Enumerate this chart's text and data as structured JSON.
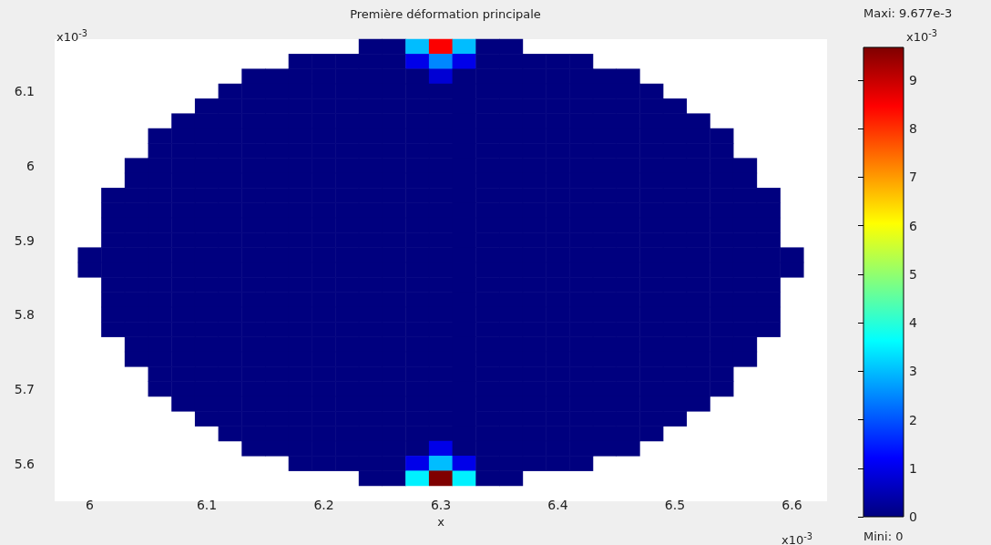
{
  "chart_data": {
    "type": "heatmap",
    "title": "Première déformation principale",
    "xlabel": "x",
    "clabel": "x10$^{-3}$",
    "annotations": [
      "Maxi: 9.677e-3",
      "Mini: 0",
      "x10$^{-3}$",
      "x10$^{-3}$"
    ],
    "categories": [
      null,
      "6",
      null,
      null,
      null,
      null,
      "6.1",
      null,
      null,
      null,
      null,
      "6.2",
      null,
      null,
      null,
      null,
      "6.3",
      null,
      null,
      null,
      null,
      "6.4",
      null,
      null,
      null,
      null,
      "6.5",
      null,
      null,
      null,
      null,
      "6.6",
      null
    ],
    "y_categories": [
      null,
      null,
      null,
      "6.1",
      null,
      null,
      null,
      null,
      "6",
      null,
      null,
      null,
      null,
      "5.9",
      null,
      null,
      null,
      null,
      "5.8",
      null,
      null,
      null,
      null,
      "5.7",
      null,
      null,
      null,
      null,
      "5.6",
      null
    ],
    "clim": [
      0,
      9.677
    ],
    "cticks": [
      0,
      1,
      2,
      3,
      4,
      5,
      6,
      7,
      8,
      9
    ],
    "cells": [
      [
        null,
        null,
        null,
        null,
        null,
        null,
        null,
        null,
        null,
        null,
        null,
        null,
        null,
        0,
        0,
        3,
        8.5,
        3,
        0,
        0,
        null,
        null,
        null,
        null,
        null,
        null,
        null,
        null,
        null,
        null,
        null,
        null,
        null
      ],
      [
        null,
        null,
        null,
        null,
        null,
        null,
        null,
        null,
        null,
        null,
        0,
        0,
        0,
        0,
        0,
        1,
        2.5,
        1,
        0,
        0,
        0,
        0,
        0,
        null,
        null,
        null,
        null,
        null,
        null,
        null,
        null,
        null,
        null
      ],
      [
        null,
        null,
        null,
        null,
        null,
        null,
        null,
        null,
        0,
        0,
        0,
        0,
        0,
        0,
        0,
        0,
        0.8,
        0,
        0,
        0,
        0,
        0,
        0,
        0,
        0,
        null,
        null,
        null,
        null,
        null,
        null,
        null,
        null
      ],
      [
        null,
        null,
        null,
        null,
        null,
        null,
        null,
        0,
        0,
        0,
        0,
        0,
        0,
        0,
        0,
        0,
        0,
        0,
        0,
        0,
        0,
        0,
        0,
        0,
        0,
        0,
        null,
        null,
        null,
        null,
        null,
        null,
        null
      ],
      [
        null,
        null,
        null,
        null,
        null,
        null,
        0,
        0,
        0,
        0,
        0,
        0,
        0,
        0,
        0,
        0,
        0,
        0,
        0,
        0,
        0,
        0,
        0,
        0,
        0,
        0,
        0,
        null,
        null,
        null,
        null,
        null,
        null
      ],
      [
        null,
        null,
        null,
        null,
        null,
        0,
        0,
        0,
        0,
        0,
        0,
        0,
        0,
        0,
        0,
        0,
        0,
        0,
        0,
        0,
        0,
        0,
        0,
        0,
        0,
        0,
        0,
        0,
        null,
        null,
        null,
        null,
        null
      ],
      [
        null,
        null,
        null,
        null,
        0,
        0,
        0,
        0,
        0,
        0,
        0,
        0,
        0,
        0,
        0,
        0,
        0,
        0,
        0,
        0,
        0,
        0,
        0,
        0,
        0,
        0,
        0,
        0,
        0,
        null,
        null,
        null,
        null
      ],
      [
        null,
        null,
        null,
        null,
        0,
        0,
        0,
        0,
        0,
        0,
        0,
        0,
        0,
        0,
        0,
        0,
        0,
        0,
        0,
        0,
        0,
        0,
        0,
        0,
        0,
        0,
        0,
        0,
        0,
        null,
        null,
        null,
        null
      ],
      [
        null,
        null,
        null,
        0,
        0,
        0,
        0,
        0,
        0,
        0,
        0,
        0,
        0,
        0,
        0,
        0,
        0,
        0,
        0,
        0,
        0,
        0,
        0,
        0,
        0,
        0,
        0,
        0,
        0,
        0,
        null,
        null,
        null
      ],
      [
        null,
        null,
        null,
        0,
        0,
        0,
        0,
        0,
        0,
        0,
        0,
        0,
        0,
        0,
        0,
        0,
        0,
        0,
        0,
        0,
        0,
        0,
        0,
        0,
        0,
        0,
        0,
        0,
        0,
        0,
        null,
        null,
        null
      ],
      [
        null,
        null,
        0,
        0,
        0,
        0,
        0,
        0,
        0,
        0,
        0,
        0,
        0,
        0,
        0,
        0,
        0,
        0,
        0,
        0,
        0,
        0,
        0,
        0,
        0,
        0,
        0,
        0,
        0,
        0,
        0,
        null,
        null
      ],
      [
        null,
        null,
        0,
        0,
        0,
        0,
        0,
        0,
        0,
        0,
        0,
        0,
        0,
        0,
        0,
        0,
        0,
        0,
        0,
        0,
        0,
        0,
        0,
        0,
        0,
        0,
        0,
        0,
        0,
        0,
        0,
        null,
        null
      ],
      [
        null,
        null,
        0,
        0,
        0,
        0,
        0,
        0,
        0,
        0,
        0,
        0,
        0,
        0,
        0,
        0,
        0,
        0,
        0,
        0,
        0,
        0,
        0,
        0,
        0,
        0,
        0,
        0,
        0,
        0,
        0,
        null,
        null
      ],
      [
        null,
        null,
        0,
        0,
        0,
        0,
        0,
        0,
        0,
        0,
        0,
        0,
        0,
        0,
        0,
        0,
        0,
        0,
        0,
        0,
        0,
        0,
        0,
        0,
        0,
        0,
        0,
        0,
        0,
        0,
        0,
        null,
        null
      ],
      [
        null,
        0,
        0,
        0,
        0,
        0,
        0,
        0,
        0,
        0,
        0,
        0,
        0,
        0,
        0,
        0,
        0,
        0,
        0,
        0,
        0,
        0,
        0,
        0,
        0,
        0,
        0,
        0,
        0,
        0,
        0,
        0,
        null
      ],
      [
        null,
        0,
        0,
        0,
        0,
        0,
        0,
        0,
        0,
        0,
        0,
        0,
        0,
        0,
        0,
        0,
        0,
        0,
        0,
        0,
        0,
        0,
        0,
        0,
        0,
        0,
        0,
        0,
        0,
        0,
        0,
        0,
        null
      ],
      [
        null,
        null,
        0,
        0,
        0,
        0,
        0,
        0,
        0,
        0,
        0,
        0,
        0,
        0,
        0,
        0,
        0,
        0,
        0,
        0,
        0,
        0,
        0,
        0,
        0,
        0,
        0,
        0,
        0,
        0,
        0,
        null,
        null
      ],
      [
        null,
        null,
        0,
        0,
        0,
        0,
        0,
        0,
        0,
        0,
        0,
        0,
        0,
        0,
        0,
        0,
        0,
        0,
        0,
        0,
        0,
        0,
        0,
        0,
        0,
        0,
        0,
        0,
        0,
        0,
        0,
        null,
        null
      ],
      [
        null,
        null,
        0,
        0,
        0,
        0,
        0,
        0,
        0,
        0,
        0,
        0,
        0,
        0,
        0,
        0,
        0,
        0,
        0,
        0,
        0,
        0,
        0,
        0,
        0,
        0,
        0,
        0,
        0,
        0,
        0,
        null,
        null
      ],
      [
        null,
        null,
        0,
        0,
        0,
        0,
        0,
        0,
        0,
        0,
        0,
        0,
        0,
        0,
        0,
        0,
        0,
        0,
        0,
        0,
        0,
        0,
        0,
        0,
        0,
        0,
        0,
        0,
        0,
        0,
        0,
        null,
        null
      ],
      [
        null,
        null,
        null,
        0,
        0,
        0,
        0,
        0,
        0,
        0,
        0,
        0,
        0,
        0,
        0,
        0,
        0,
        0,
        0,
        0,
        0,
        0,
        0,
        0,
        0,
        0,
        0,
        0,
        0,
        0,
        null,
        null,
        null
      ],
      [
        null,
        null,
        null,
        0,
        0,
        0,
        0,
        0,
        0,
        0,
        0,
        0,
        0,
        0,
        0,
        0,
        0,
        0,
        0,
        0,
        0,
        0,
        0,
        0,
        0,
        0,
        0,
        0,
        0,
        0,
        null,
        null,
        null
      ],
      [
        null,
        null,
        null,
        null,
        0,
        0,
        0,
        0,
        0,
        0,
        0,
        0,
        0,
        0,
        0,
        0,
        0,
        0,
        0,
        0,
        0,
        0,
        0,
        0,
        0,
        0,
        0,
        0,
        0,
        null,
        null,
        null,
        null
      ],
      [
        null,
        null,
        null,
        null,
        0,
        0,
        0,
        0,
        0,
        0,
        0,
        0,
        0,
        0,
        0,
        0,
        0,
        0,
        0,
        0,
        0,
        0,
        0,
        0,
        0,
        0,
        0,
        0,
        0,
        null,
        null,
        null,
        null
      ],
      [
        null,
        null,
        null,
        null,
        null,
        0,
        0,
        0,
        0,
        0,
        0,
        0,
        0,
        0,
        0,
        0,
        0,
        0,
        0,
        0,
        0,
        0,
        0,
        0,
        0,
        0,
        0,
        0,
        null,
        null,
        null,
        null,
        null
      ],
      [
        null,
        null,
        null,
        null,
        null,
        null,
        0,
        0,
        0,
        0,
        0,
        0,
        0,
        0,
        0,
        0,
        0,
        0,
        0,
        0,
        0,
        0,
        0,
        0,
        0,
        0,
        0,
        null,
        null,
        null,
        null,
        null,
        null
      ],
      [
        null,
        null,
        null,
        null,
        null,
        null,
        null,
        0,
        0,
        0,
        0,
        0,
        0,
        0,
        0,
        0,
        0,
        0,
        0,
        0,
        0,
        0,
        0,
        0,
        0,
        0,
        null,
        null,
        null,
        null,
        null,
        null,
        null
      ],
      [
        null,
        null,
        null,
        null,
        null,
        null,
        null,
        null,
        0,
        0,
        0,
        0,
        0,
        0,
        0,
        0,
        1,
        0,
        0,
        0,
        0,
        0,
        0,
        0,
        0,
        null,
        null,
        null,
        null,
        null,
        null,
        null,
        null
      ],
      [
        null,
        null,
        null,
        null,
        null,
        null,
        null,
        null,
        null,
        null,
        0,
        0,
        0,
        0,
        0,
        1,
        3,
        1,
        0,
        0,
        0,
        0,
        0,
        null,
        null,
        null,
        null,
        null,
        null,
        null,
        null,
        null,
        null
      ],
      [
        null,
        null,
        null,
        null,
        null,
        null,
        null,
        null,
        null,
        null,
        null,
        null,
        null,
        0,
        0,
        3.5,
        9.677,
        3.5,
        0,
        0,
        null,
        null,
        null,
        null,
        null,
        null,
        null,
        null,
        null,
        null,
        null,
        null,
        null
      ]
    ]
  }
}
